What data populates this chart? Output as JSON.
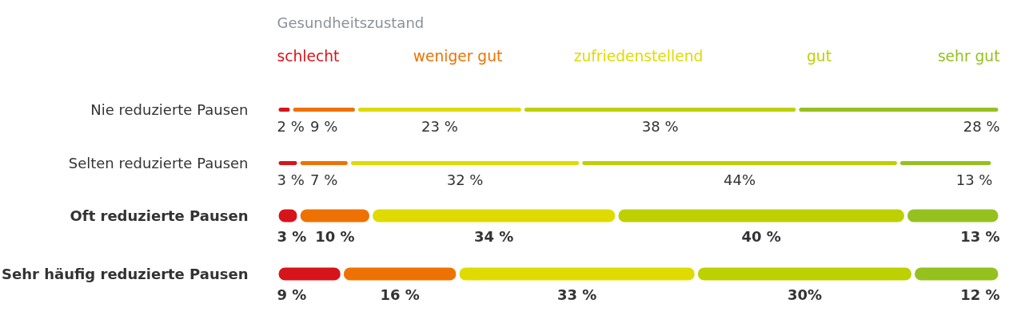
{
  "chart_data": {
    "type": "bar",
    "orientation": "horizontal",
    "stacked": true,
    "legend": "top",
    "legend_title": "Gesundheitszustand",
    "categories": [
      "Nie reduzierte Pausen",
      "Selten reduzierte Pausen",
      "Oft reduzierte Pausen",
      "Sehr häufig reduzierte Pausen"
    ],
    "series": [
      {
        "name": "schlecht",
        "color": "#d7141a",
        "values": [
          2,
          3,
          3,
          9
        ],
        "value_labels": [
          "2 %",
          "3 %",
          "3 %",
          "9 %"
        ]
      },
      {
        "name": "weniger gut",
        "color": "#ee7203",
        "values": [
          9,
          7,
          10,
          16
        ],
        "value_labels": [
          "9 %",
          "7 %",
          "10 %",
          "16 %"
        ]
      },
      {
        "name": "zufriedenstellend",
        "color": "#dfdb00",
        "values": [
          23,
          32,
          34,
          33
        ],
        "value_labels": [
          "23 %",
          "32 %",
          "34 %",
          "33 %"
        ]
      },
      {
        "name": "gut",
        "color": "#bdd000",
        "values": [
          38,
          44,
          40,
          30
        ],
        "value_labels": [
          "38 %",
          "44%",
          "40 %",
          "30%"
        ]
      },
      {
        "name": "sehr gut",
        "color": "#95c11f",
        "values": [
          28,
          13,
          13,
          12
        ],
        "value_labels": [
          "28 %",
          "13 %",
          "13 %",
          "12 %"
        ]
      }
    ]
  }
}
